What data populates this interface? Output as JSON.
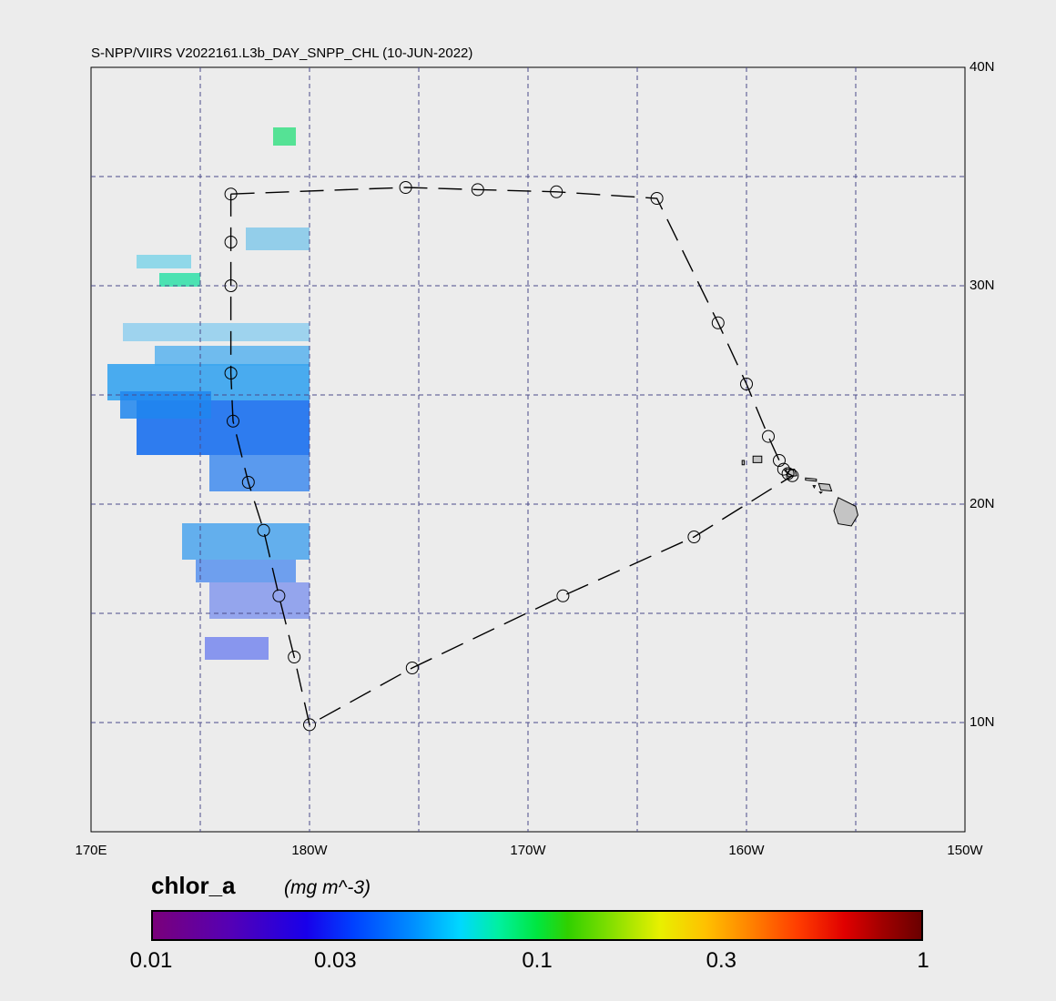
{
  "title": "S-NPP/VIIRS V2022161.L3b_DAY_SNPP_CHL (10-JUN-2022)",
  "map": {
    "lon_min": 170,
    "lon_max": 210,
    "lat_min": 5,
    "lat_max": 40,
    "grid_lon": [
      175,
      180,
      185,
      190,
      195,
      200,
      205
    ],
    "grid_lat": [
      10,
      15,
      20,
      25,
      30,
      35
    ],
    "grid_color": "#4a4a8a",
    "land_color": "#c4c4c4",
    "lat_labels": [
      {
        "lat": 40,
        "text": "40N"
      },
      {
        "lat": 30,
        "text": "30N"
      },
      {
        "lat": 20,
        "text": "20N"
      },
      {
        "lat": 10,
        "text": "10N"
      }
    ],
    "lon_labels": [
      {
        "lon": 170,
        "text": "170E"
      },
      {
        "lon": 180,
        "text": "180W"
      },
      {
        "lon": 190,
        "text": "170W"
      },
      {
        "lon": 200,
        "text": "160W"
      },
      {
        "lon": 210,
        "text": "150W"
      }
    ],
    "track_stations": [
      [
        176.4,
        34.2
      ],
      [
        184.4,
        34.5
      ],
      [
        187.7,
        34.4
      ],
      [
        191.3,
        34.3
      ],
      [
        195.9,
        34.0
      ],
      [
        198.7,
        28.3
      ],
      [
        200.0,
        25.5
      ],
      [
        201.0,
        23.1
      ],
      [
        201.5,
        22.0
      ],
      [
        201.7,
        21.6
      ],
      [
        201.9,
        21.4
      ],
      [
        202.1,
        21.3
      ],
      [
        197.6,
        18.5
      ],
      [
        191.6,
        15.8
      ],
      [
        184.7,
        12.5
      ],
      [
        180.0,
        9.9
      ],
      [
        179.3,
        13.0
      ],
      [
        178.6,
        15.8
      ],
      [
        177.9,
        18.8
      ],
      [
        177.2,
        21.0
      ],
      [
        176.5,
        23.8
      ],
      [
        176.4,
        26.0
      ],
      [
        176.4,
        30.0
      ],
      [
        176.4,
        32.0
      ]
    ],
    "islands": [
      {
        "name": "Hawaii",
        "points": [
          [
            204.2,
            20.3
          ],
          [
            205.0,
            19.9
          ],
          [
            205.1,
            19.5
          ],
          [
            204.8,
            19.0
          ],
          [
            204.2,
            19.1
          ],
          [
            204.0,
            19.7
          ]
        ]
      },
      {
        "name": "Maui",
        "points": [
          [
            203.3,
            20.95
          ],
          [
            203.8,
            20.9
          ],
          [
            203.9,
            20.6
          ],
          [
            203.4,
            20.65
          ]
        ]
      },
      {
        "name": "Molokai",
        "points": [
          [
            202.7,
            21.2
          ],
          [
            203.2,
            21.15
          ],
          [
            203.2,
            21.05
          ],
          [
            202.7,
            21.1
          ]
        ]
      },
      {
        "name": "Oahu",
        "points": [
          [
            201.8,
            21.6
          ],
          [
            202.2,
            21.6
          ],
          [
            202.3,
            21.3
          ],
          [
            201.9,
            21.25
          ]
        ]
      },
      {
        "name": "Kauai",
        "points": [
          [
            200.3,
            22.2
          ],
          [
            200.7,
            22.2
          ],
          [
            200.7,
            21.9
          ],
          [
            200.3,
            21.9
          ]
        ]
      },
      {
        "name": "Niihau",
        "points": [
          [
            199.8,
            22.0
          ],
          [
            199.9,
            22.0
          ],
          [
            199.9,
            21.8
          ],
          [
            199.8,
            21.8
          ]
        ]
      },
      {
        "name": "Lanai",
        "points": [
          [
            203.05,
            20.85
          ],
          [
            203.15,
            20.85
          ],
          [
            203.1,
            20.75
          ]
        ]
      },
      {
        "name": "Kahoolawe",
        "points": [
          [
            203.35,
            20.55
          ],
          [
            203.45,
            20.55
          ],
          [
            203.4,
            20.5
          ]
        ]
      }
    ]
  },
  "colorbar": {
    "variable": "chlor_a",
    "units": "(mg m^-3)",
    "ticks": [
      {
        "value": 0.01,
        "text": "0.01"
      },
      {
        "value": 0.03,
        "text": "0.03"
      },
      {
        "value": 0.1,
        "text": "0.1"
      },
      {
        "value": 0.3,
        "text": "0.3"
      },
      {
        "value": 1,
        "text": "1"
      }
    ]
  }
}
